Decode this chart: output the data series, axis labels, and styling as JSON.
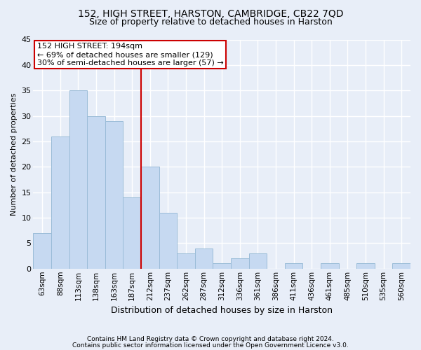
{
  "title1": "152, HIGH STREET, HARSTON, CAMBRIDGE, CB22 7QD",
  "title2": "Size of property relative to detached houses in Harston",
  "xlabel": "Distribution of detached houses by size in Harston",
  "ylabel": "Number of detached properties",
  "categories": [
    "63sqm",
    "88sqm",
    "113sqm",
    "138sqm",
    "163sqm",
    "187sqm",
    "212sqm",
    "237sqm",
    "262sqm",
    "287sqm",
    "312sqm",
    "336sqm",
    "361sqm",
    "386sqm",
    "411sqm",
    "436sqm",
    "461sqm",
    "485sqm",
    "510sqm",
    "535sqm",
    "560sqm"
  ],
  "values": [
    7,
    26,
    35,
    30,
    29,
    14,
    20,
    11,
    3,
    4,
    1,
    2,
    3,
    0,
    1,
    0,
    1,
    0,
    1,
    0,
    1
  ],
  "bar_color": "#c6d9f1",
  "bar_edge_color": "#9bbcd8",
  "vline_x": 5.5,
  "vline_color": "#cc0000",
  "annotation_line1": "152 HIGH STREET: 194sqm",
  "annotation_line2": "← 69% of detached houses are smaller (129)",
  "annotation_line3": "30% of semi-detached houses are larger (57) →",
  "annotation_box_facecolor": "#ffffff",
  "annotation_box_edgecolor": "#cc0000",
  "ylim": [
    0,
    45
  ],
  "yticks": [
    0,
    5,
    10,
    15,
    20,
    25,
    30,
    35,
    40,
    45
  ],
  "footer1": "Contains HM Land Registry data © Crown copyright and database right 2024.",
  "footer2": "Contains public sector information licensed under the Open Government Licence v3.0.",
  "bg_color": "#e8eef8",
  "grid_color": "#ffffff",
  "title1_fontsize": 10,
  "title2_fontsize": 9,
  "ylabel_fontsize": 8,
  "xlabel_fontsize": 9,
  "ytick_fontsize": 8,
  "xtick_fontsize": 7.5,
  "annotation_fontsize": 8,
  "footer_fontsize": 6.5
}
